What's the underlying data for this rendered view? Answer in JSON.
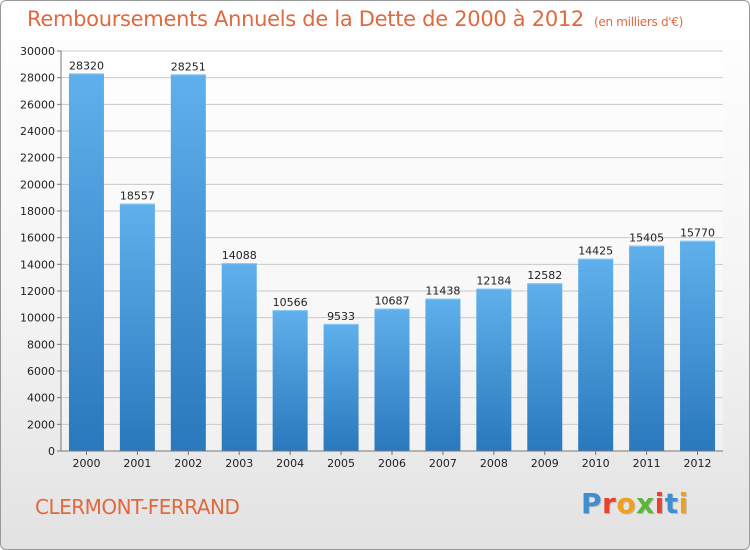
{
  "header": {
    "title": "Remboursements Annuels de la Dette de 2000 à 2012",
    "unit": "(en milliers d'€)"
  },
  "footer": {
    "city": "CLERMONT-FERRAND",
    "logo": "Proxiti",
    "logo_colors": [
      "#3f8fd0",
      "#e8412e",
      "#f0a020",
      "#5db53a",
      "#e8412e",
      "#3f8fd0",
      "#f0a020"
    ]
  },
  "colors": {
    "bar_light": "#5fb0ec",
    "bar_dark": "#2a78bd",
    "accent": "#e0693f"
  },
  "chart_data": {
    "type": "bar",
    "title": "Remboursements Annuels de la Dette de 2000 à 2012",
    "xlabel": "",
    "ylabel": "",
    "categories": [
      "2000",
      "2001",
      "2002",
      "2003",
      "2004",
      "2005",
      "2006",
      "2007",
      "2008",
      "2009",
      "2010",
      "2011",
      "2012"
    ],
    "values": [
      28320,
      18557,
      28251,
      14088,
      10566,
      9533,
      10687,
      11438,
      12184,
      12582,
      14425,
      15405,
      15770
    ],
    "ylim": [
      0,
      30000
    ],
    "yticks": [
      0,
      2000,
      4000,
      6000,
      8000,
      10000,
      12000,
      14000,
      16000,
      18000,
      20000,
      22000,
      24000,
      26000,
      28000,
      30000
    ],
    "grid": true,
    "legend": "none"
  }
}
